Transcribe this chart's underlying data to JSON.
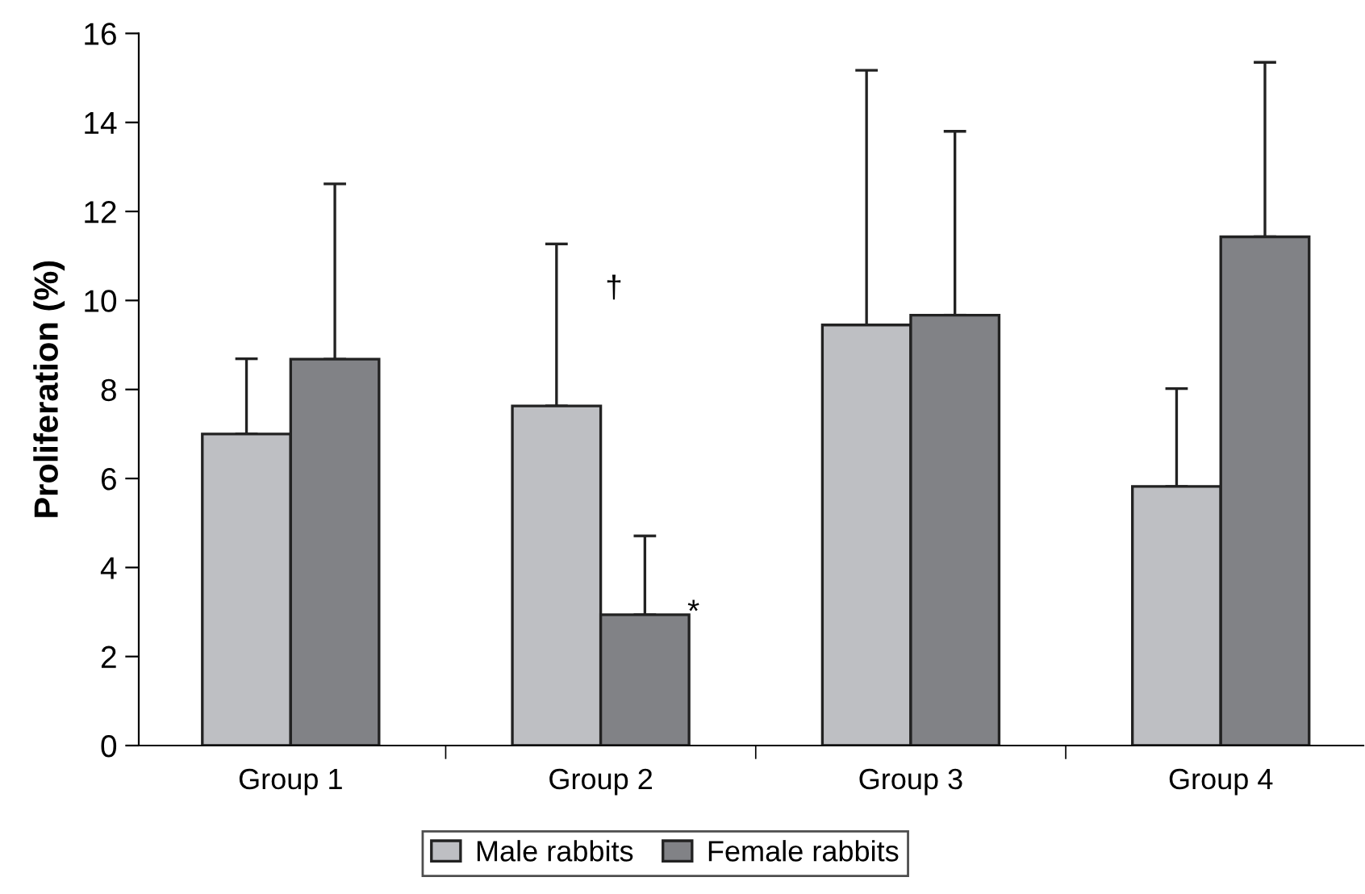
{
  "chart_data": {
    "type": "bar",
    "ylabel": "Proliferation (%)",
    "categories": [
      "Group 1",
      "Group 2",
      "Group 3",
      "Group 4"
    ],
    "series": [
      {
        "name": "Male rabbits",
        "color": "#bebfc3",
        "values": [
          7.0,
          7.63,
          9.45,
          5.82
        ],
        "errors": [
          [
            7.0,
            8.69
          ],
          [
            7.63,
            11.27
          ],
          [
            9.45,
            15.17
          ],
          [
            5.82,
            8.02
          ]
        ]
      },
      {
        "name": "Female rabbits",
        "color": "#818286",
        "values": [
          8.68,
          2.94,
          9.67,
          11.43
        ],
        "errors": [
          [
            8.68,
            12.62
          ],
          [
            2.94,
            4.71
          ],
          [
            9.67,
            13.8
          ],
          [
            11.43,
            15.35
          ]
        ]
      }
    ],
    "ylim": [
      0,
      16
    ],
    "yticks": [
      0,
      2,
      4,
      6,
      8,
      10,
      12,
      14,
      16
    ],
    "annotations": [
      "†",
      "*"
    ],
    "legend": "bottom",
    "grid": false
  }
}
